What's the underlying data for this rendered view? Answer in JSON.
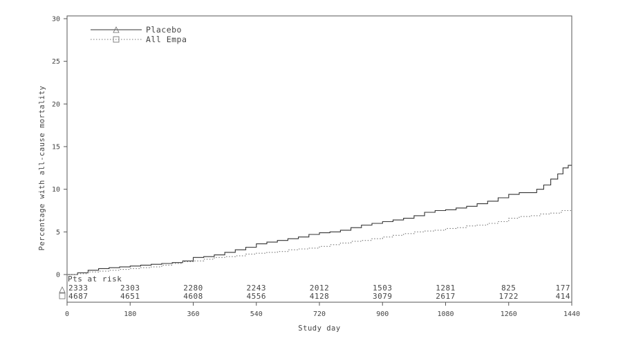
{
  "chart_data": {
    "type": "line",
    "title": "",
    "xlabel": "Study day",
    "ylabel": "Percentage with all-cause mortality",
    "xlim": [
      0,
      1440
    ],
    "ylim": [
      0,
      30
    ],
    "x_ticks": [
      0,
      180,
      360,
      540,
      720,
      900,
      1080,
      1260,
      1440
    ],
    "y_ticks": [
      0,
      5,
      10,
      15,
      20,
      25,
      30
    ],
    "x_tick_labels": [
      "0",
      "180",
      "360",
      "540",
      "720",
      "900",
      "1080",
      "1260",
      "1440"
    ],
    "y_tick_labels": [
      "0",
      "5",
      "10",
      "15",
      "20",
      "25",
      "30"
    ],
    "grid": false,
    "legend_position": "top-left",
    "series": [
      {
        "name": "Placebo",
        "style": "solid",
        "marker": "triangle",
        "color": "#333333",
        "points": [
          [
            0,
            0
          ],
          [
            30,
            0.2
          ],
          [
            60,
            0.5
          ],
          [
            90,
            0.7
          ],
          [
            120,
            0.8
          ],
          [
            150,
            0.9
          ],
          [
            180,
            1.0
          ],
          [
            210,
            1.1
          ],
          [
            240,
            1.2
          ],
          [
            270,
            1.3
          ],
          [
            300,
            1.4
          ],
          [
            330,
            1.6
          ],
          [
            360,
            2.0
          ],
          [
            390,
            2.1
          ],
          [
            420,
            2.3
          ],
          [
            450,
            2.6
          ],
          [
            480,
            2.9
          ],
          [
            510,
            3.2
          ],
          [
            540,
            3.6
          ],
          [
            570,
            3.8
          ],
          [
            600,
            4.0
          ],
          [
            630,
            4.2
          ],
          [
            660,
            4.4
          ],
          [
            690,
            4.7
          ],
          [
            720,
            4.9
          ],
          [
            750,
            5.0
          ],
          [
            780,
            5.2
          ],
          [
            810,
            5.5
          ],
          [
            840,
            5.8
          ],
          [
            870,
            6.0
          ],
          [
            900,
            6.2
          ],
          [
            930,
            6.4
          ],
          [
            960,
            6.6
          ],
          [
            990,
            6.9
          ],
          [
            1020,
            7.3
          ],
          [
            1050,
            7.5
          ],
          [
            1080,
            7.6
          ],
          [
            1110,
            7.8
          ],
          [
            1140,
            8.0
          ],
          [
            1170,
            8.3
          ],
          [
            1200,
            8.6
          ],
          [
            1230,
            9.0
          ],
          [
            1260,
            9.4
          ],
          [
            1290,
            9.6
          ],
          [
            1320,
            9.6
          ],
          [
            1340,
            10.0
          ],
          [
            1360,
            10.5
          ],
          [
            1380,
            11.2
          ],
          [
            1400,
            11.8
          ],
          [
            1415,
            12.5
          ],
          [
            1430,
            12.8
          ],
          [
            1440,
            12.8
          ]
        ]
      },
      {
        "name": "All Empa",
        "style": "dotted",
        "marker": "square",
        "color": "#777777",
        "points": [
          [
            0,
            0
          ],
          [
            30,
            0.1
          ],
          [
            60,
            0.3
          ],
          [
            90,
            0.4
          ],
          [
            120,
            0.5
          ],
          [
            150,
            0.6
          ],
          [
            180,
            0.7
          ],
          [
            210,
            0.8
          ],
          [
            240,
            0.9
          ],
          [
            270,
            1.1
          ],
          [
            300,
            1.3
          ],
          [
            330,
            1.5
          ],
          [
            360,
            1.6
          ],
          [
            390,
            1.8
          ],
          [
            420,
            2.0
          ],
          [
            450,
            2.1
          ],
          [
            480,
            2.2
          ],
          [
            510,
            2.4
          ],
          [
            540,
            2.5
          ],
          [
            570,
            2.6
          ],
          [
            600,
            2.7
          ],
          [
            630,
            2.9
          ],
          [
            660,
            3.0
          ],
          [
            690,
            3.1
          ],
          [
            720,
            3.3
          ],
          [
            750,
            3.5
          ],
          [
            780,
            3.7
          ],
          [
            810,
            3.9
          ],
          [
            840,
            4.0
          ],
          [
            870,
            4.2
          ],
          [
            900,
            4.4
          ],
          [
            930,
            4.6
          ],
          [
            960,
            4.8
          ],
          [
            990,
            5.0
          ],
          [
            1020,
            5.1
          ],
          [
            1050,
            5.2
          ],
          [
            1080,
            5.4
          ],
          [
            1110,
            5.5
          ],
          [
            1140,
            5.7
          ],
          [
            1170,
            5.8
          ],
          [
            1200,
            6.0
          ],
          [
            1230,
            6.2
          ],
          [
            1260,
            6.6
          ],
          [
            1290,
            6.8
          ],
          [
            1320,
            6.9
          ],
          [
            1350,
            7.1
          ],
          [
            1380,
            7.2
          ],
          [
            1410,
            7.5
          ],
          [
            1440,
            7.6
          ]
        ]
      }
    ],
    "at_risk": {
      "label": "Pts at risk",
      "x": [
        0,
        180,
        360,
        540,
        720,
        900,
        1080,
        1260,
        1440
      ],
      "rows": [
        {
          "name": "Placebo",
          "marker": "triangle",
          "values": [
            "2333",
            "2303",
            "2280",
            "2243",
            "2012",
            "1503",
            "1281",
            "825",
            "177"
          ]
        },
        {
          "name": "All Empa",
          "marker": "square",
          "values": [
            "4687",
            "4651",
            "4608",
            "4556",
            "4128",
            "3079",
            "2617",
            "1722",
            "414"
          ]
        }
      ]
    }
  }
}
